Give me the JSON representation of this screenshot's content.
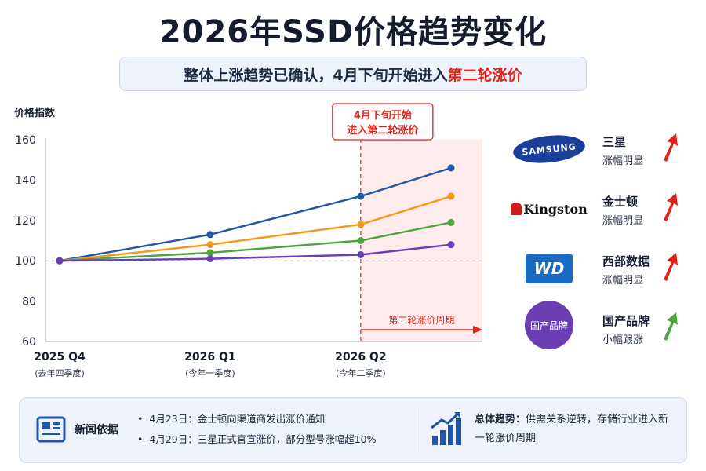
{
  "title": "2026年SSD价格趋势变化",
  "subtitle": {
    "text": "整体上涨趋势已确认，4月下旬开始进入",
    "highlight": "第二轮涨价",
    "highlight_color": "#e0241b"
  },
  "chart_data": {
    "type": "line",
    "ylabel": "价格指数",
    "ylim": [
      60,
      160
    ],
    "yticks": [
      60,
      80,
      100,
      120,
      140,
      160
    ],
    "x": [
      "2025 Q4",
      "2026 Q1",
      "2026 Q2",
      ""
    ],
    "x_tick_labels": [
      {
        "label": "2025 Q4",
        "sub": "(去年四季度)"
      },
      {
        "label": "2026 Q1",
        "sub": "(今年一季度)"
      },
      {
        "label": "2026 Q2",
        "sub": "(今年二季度)"
      }
    ],
    "x_positions": [
      0,
      1,
      2,
      2.6
    ],
    "baseline": 100,
    "series": [
      {
        "color": "#1f56a8",
        "values": [
          100,
          113,
          132,
          146
        ]
      },
      {
        "color": "#f5961d",
        "values": [
          100,
          108,
          118,
          132
        ]
      },
      {
        "color": "#4aa53d",
        "values": [
          100,
          104,
          110,
          119
        ]
      },
      {
        "color": "#6a3fb3",
        "values": [
          100,
          101,
          103,
          108
        ]
      }
    ],
    "annotation": {
      "line1": "4月下旬开始",
      "line2": "进入第二轮涨价",
      "color": "#e0241b",
      "x_start": 2.0
    },
    "period_label": "第二轮涨价周期"
  },
  "brands": [
    {
      "logo_text": "SAMSUNG",
      "name": "三星",
      "desc": "涨幅明显",
      "arrow_color": "#e0241b",
      "icon": "samsung-logo"
    },
    {
      "logo_text": "Kingston",
      "name": "金士顿",
      "desc": "涨幅明显",
      "arrow_color": "#e0241b",
      "icon": "kingston-logo"
    },
    {
      "logo_text": "WD",
      "name": "西部数据",
      "desc": "涨幅明显",
      "arrow_color": "#e0241b",
      "icon": "wd-logo"
    },
    {
      "logo_text": "国产品牌",
      "name": "国产品牌",
      "desc": "小幅跟涨",
      "arrow_color": "#4aa53d",
      "icon": "domestic-brand-logo"
    }
  ],
  "footer": {
    "news_title": "新闻依据",
    "news_items": [
      "4月23日：金士顿向渠道商发出涨价通知",
      "4月29日：三星正式官宣涨价，部分型号涨幅超10%"
    ],
    "trend_label": "总体趋势：",
    "trend_text": "供需关系逆转，存储行业进入新一轮涨价周期",
    "news_icon": "newspaper-icon",
    "trend_icon": "bar-chart-rising-icon"
  }
}
